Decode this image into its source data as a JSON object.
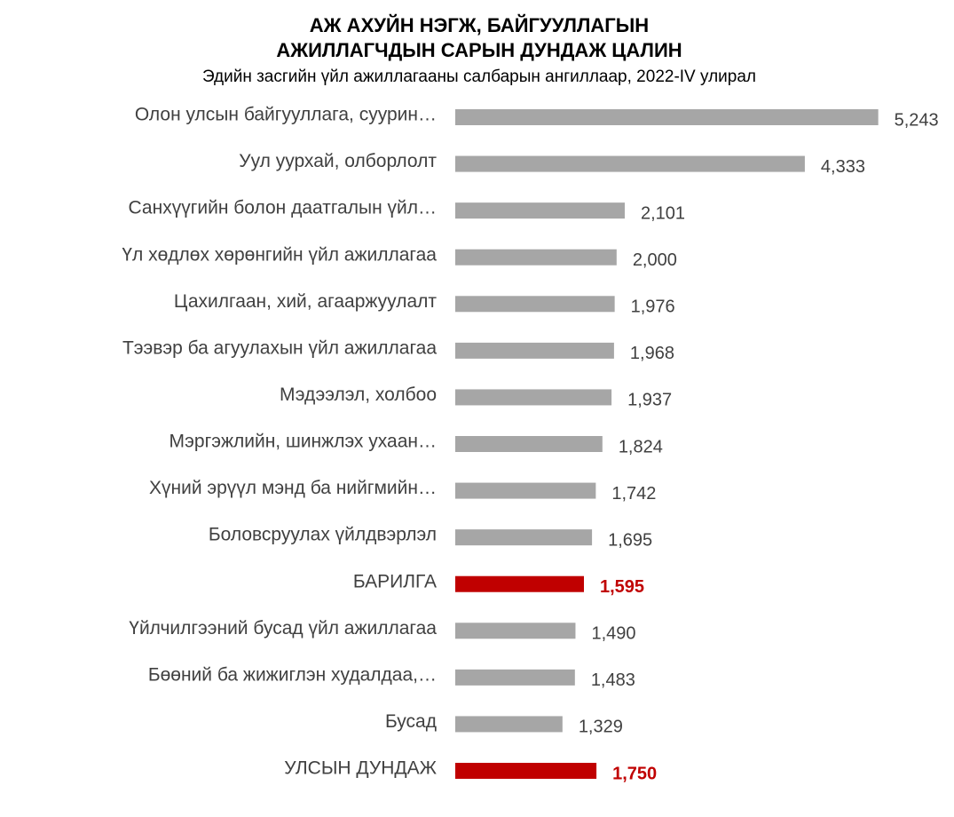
{
  "chart_data": {
    "type": "barh",
    "title": [
      "АЖ АХУЙН НЭГЖ, БАЙГУУЛЛАГЫН",
      "АЖИЛЛАГЧДЫН САРЫН ДУНДАЖ ЦАЛИН"
    ],
    "subtitle": "Эдийн засгийн үйл ажиллагааны салбарын ангиллаар, 2022-IV улирал",
    "categories": [
      "Олон улсын байгууллага, суурин…",
      "Уул уурхай, олборлолт",
      "Санхүүгийн болон даатгалын үйл…",
      "Үл хөдлөх хөрөнгийн үйл ажиллагаа",
      "Цахилгаан, хий, агааржуулалт",
      "Тээвэр ба агуулахын үйл ажиллагаа",
      "Мэдээлэл, холбоо",
      "Мэргэжлийн, шинжлэх ухаан…",
      "Хүний эрүүл мэнд ба нийгмийн…",
      "Боловсруулах үйлдвэрлэл",
      "БАРИЛГА",
      "Үйлчилгээний бусад үйл ажиллагаа",
      "Бөөний ба жижиглэн худалдаа,…",
      "Бусад",
      "УЛСЫН ДУНДАЖ"
    ],
    "values": [
      5243,
      4333,
      2101,
      2000,
      1976,
      1968,
      1937,
      1824,
      1742,
      1695,
      1595,
      1490,
      1483,
      1329,
      1750
    ],
    "value_labels": [
      "5,243",
      "4,333",
      "2,101",
      "2,000",
      "1,976",
      "1,968",
      "1,937",
      "1,824",
      "1,742",
      "1,695",
      "1,595",
      "1,490",
      "1,483",
      "1,329",
      "1,750"
    ],
    "color": "#a6a6a6",
    "colors": [
      "#a6a6a6",
      "#a6a6a6",
      "#a6a6a6",
      "#a6a6a6",
      "#a6a6a6",
      "#a6a6a6",
      "#a6a6a6",
      "#a6a6a6",
      "#a6a6a6",
      "#a6a6a6",
      "#c00000",
      "#a6a6a6",
      "#a6a6a6",
      "#a6a6a6",
      "#c00000"
    ],
    "xlim": [
      0,
      5500
    ]
  }
}
